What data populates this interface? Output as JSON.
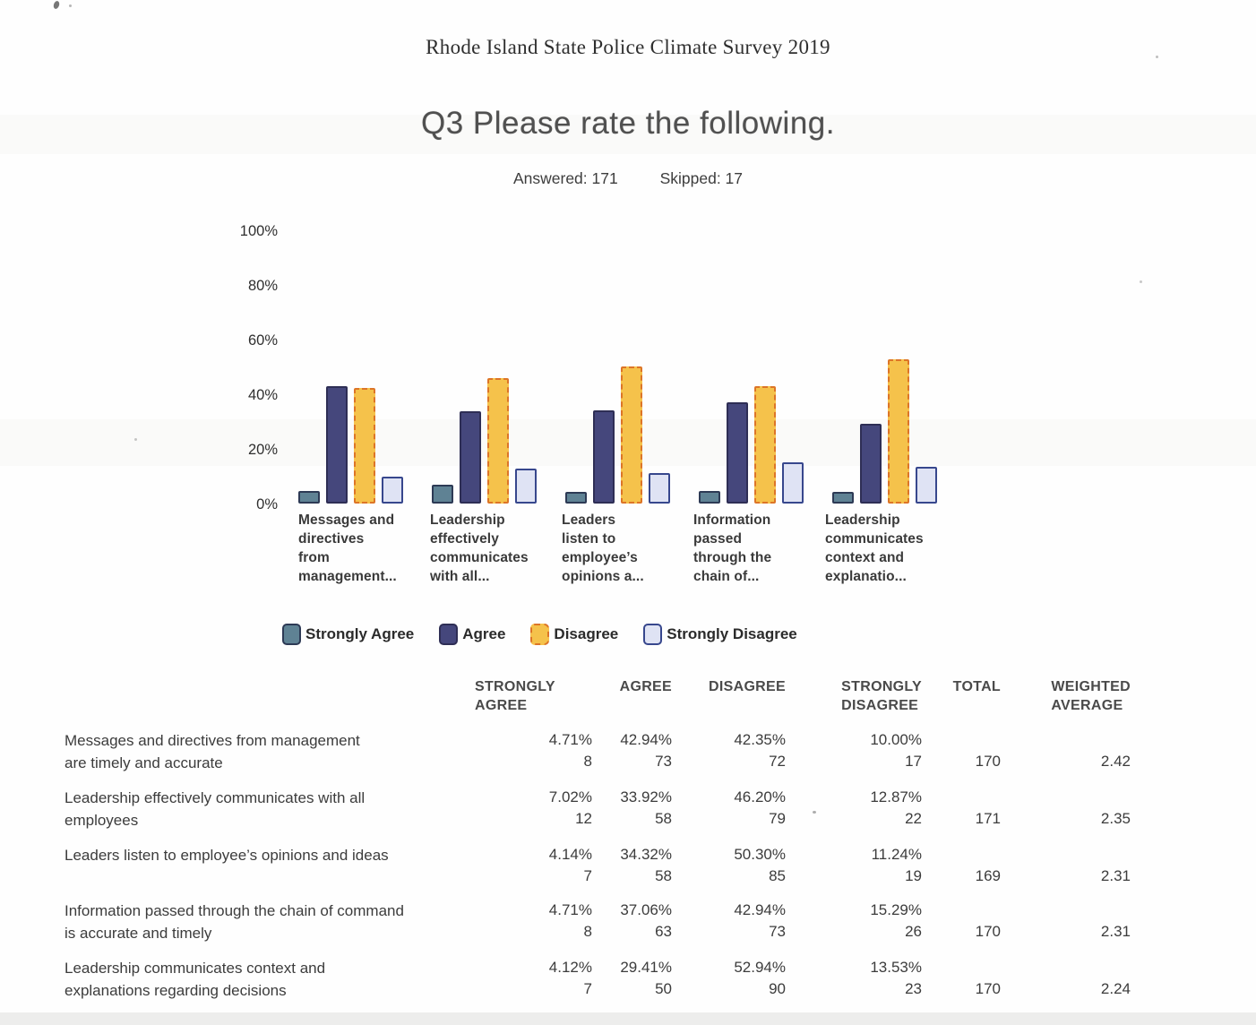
{
  "page": {
    "header": "Rhode Island State Police Climate Survey 2019",
    "title": "Q3 Please rate the following.",
    "answered": "Answered: 171",
    "skipped": "Skipped: 17"
  },
  "chart_data": {
    "type": "bar",
    "title": "Q3 Please rate the following.",
    "xlabel": "",
    "ylabel": "",
    "ylim": [
      0,
      100
    ],
    "yticks": [
      "100%",
      "80%",
      "60%",
      "40%",
      "20%",
      "0%"
    ],
    "grid": false,
    "legend_position": "bottom",
    "categories": [
      "Messages and\ndirectives\nfrom\nmanagement...",
      "Leadership\neffectively\ncommunicates\nwith all...",
      "Leaders\nlisten to\nemployee’s\nopinions a...",
      "Information\npassed\nthrough the\nchain of...",
      "Leadership\ncommunicates\ncontext and\nexplanatio..."
    ],
    "series": [
      {
        "name": "Strongly Agree",
        "values": [
          4.71,
          7.02,
          4.14,
          4.71,
          4.12
        ],
        "fill": "#5f8294",
        "border": "#2d3a55",
        "border_style": "solid"
      },
      {
        "name": "Agree",
        "values": [
          42.94,
          33.92,
          34.32,
          37.06,
          29.41
        ],
        "fill": "#45477c",
        "border": "#2e2e55",
        "border_style": "solid"
      },
      {
        "name": "Disagree",
        "values": [
          42.35,
          46.2,
          50.3,
          42.94,
          52.94
        ],
        "fill": "#f5c24b",
        "border": "#dd7527",
        "border_style": "dashed"
      },
      {
        "name": "Strongly Disagree",
        "values": [
          10.0,
          12.87,
          11.24,
          15.29,
          13.53
        ],
        "fill": "#dfe3f4",
        "border": "#37478d",
        "border_style": "solid"
      }
    ]
  },
  "table": {
    "headers": [
      "STRONGLY\nAGREE",
      "AGREE",
      "DISAGREE",
      "STRONGLY\nDISAGREE",
      "TOTAL",
      "WEIGHTED\nAVERAGE"
    ],
    "rows": [
      {
        "question": "Messages and directives from management\nare timely and accurate",
        "cells": [
          {
            "pct": "4.71%",
            "n": "8"
          },
          {
            "pct": "42.94%",
            "n": "73"
          },
          {
            "pct": "42.35%",
            "n": "72"
          },
          {
            "pct": "10.00%",
            "n": "17"
          }
        ],
        "total": "170",
        "avg": "2.42"
      },
      {
        "question": "Leadership effectively communicates with all\nemployees",
        "cells": [
          {
            "pct": "7.02%",
            "n": "12"
          },
          {
            "pct": "33.92%",
            "n": "58"
          },
          {
            "pct": "46.20%",
            "n": "79"
          },
          {
            "pct": "12.87%",
            "n": "22"
          }
        ],
        "total": "171",
        "avg": "2.35"
      },
      {
        "question": "Leaders listen to employee’s opinions and ideas",
        "cells": [
          {
            "pct": "4.14%",
            "n": "7"
          },
          {
            "pct": "34.32%",
            "n": "58"
          },
          {
            "pct": "50.30%",
            "n": "85"
          },
          {
            "pct": "11.24%",
            "n": "19"
          }
        ],
        "total": "169",
        "avg": "2.31"
      },
      {
        "question": "Information passed through the chain of command\nis accurate and timely",
        "cells": [
          {
            "pct": "4.71%",
            "n": "8"
          },
          {
            "pct": "37.06%",
            "n": "63"
          },
          {
            "pct": "42.94%",
            "n": "73"
          },
          {
            "pct": "15.29%",
            "n": "26"
          }
        ],
        "total": "170",
        "avg": "2.31"
      },
      {
        "question": "Leadership communicates context and\nexplanations regarding decisions",
        "cells": [
          {
            "pct": "4.12%",
            "n": "7"
          },
          {
            "pct": "29.41%",
            "n": "50"
          },
          {
            "pct": "52.94%",
            "n": "90"
          },
          {
            "pct": "13.53%",
            "n": "23"
          }
        ],
        "total": "170",
        "avg": "2.24"
      }
    ]
  }
}
